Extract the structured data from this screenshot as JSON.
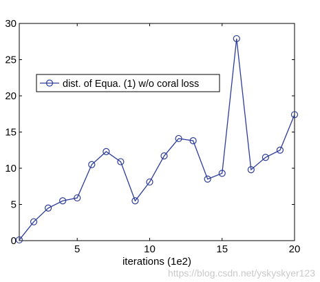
{
  "chart_data": {
    "type": "line",
    "xlabel": "iterations (1e2)",
    "ylabel": "",
    "title": "",
    "xlim": [
      1,
      20
    ],
    "ylim": [
      0,
      30
    ],
    "xticks": [
      5,
      10,
      15,
      20
    ],
    "yticks": [
      0,
      5,
      10,
      15,
      20,
      25,
      30
    ],
    "grid": false,
    "legend_position": "upper-left",
    "series": [
      {
        "name": "dist. of Equa. (1) w/o coral loss",
        "color": "#2b3b9a",
        "marker": "circle-open",
        "x": [
          1,
          2,
          3,
          4,
          5,
          6,
          7,
          8,
          9,
          10,
          11,
          12,
          13,
          14,
          15,
          16,
          17,
          18,
          19,
          20
        ],
        "y": [
          0.1,
          2.6,
          4.5,
          5.5,
          5.9,
          10.5,
          12.3,
          10.9,
          5.5,
          8.1,
          11.7,
          14.1,
          13.8,
          8.5,
          9.3,
          27.9,
          9.8,
          11.5,
          12.5,
          17.4
        ]
      }
    ]
  },
  "watermark": "https://blog.csdn.net/yskyskyer123"
}
